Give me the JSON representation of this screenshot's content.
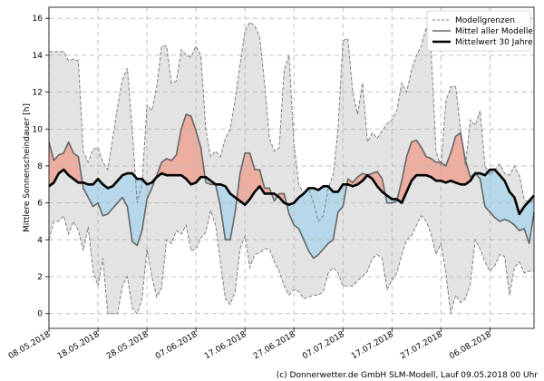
{
  "chart_data": {
    "type": "line",
    "title": "",
    "xlabel": "",
    "ylabel": "Mittlere Sonnenscheindauer [h]",
    "ylim": [
      -0.8,
      16.6
    ],
    "yticks": [
      0,
      2,
      4,
      6,
      8,
      10,
      12,
      14,
      16
    ],
    "xlim": [
      0,
      99
    ],
    "xticks": [
      {
        "day": 0,
        "label": "08.05.2018"
      },
      {
        "day": 10,
        "label": "18.05.2018"
      },
      {
        "day": 20,
        "label": "28.05.2018"
      },
      {
        "day": 30,
        "label": "07.06.2018"
      },
      {
        "day": 40,
        "label": "17.06.2018"
      },
      {
        "day": 50,
        "label": "27.06.2018"
      },
      {
        "day": 60,
        "label": "07.07.2018"
      },
      {
        "day": 70,
        "label": "17.07.2018"
      },
      {
        "day": 80,
        "label": "27.07.2018"
      },
      {
        "day": 90,
        "label": "06.08.2018"
      }
    ],
    "grid": true,
    "legend_position": "top-right",
    "legend": [
      {
        "key": "envelope",
        "label": "Modellgrenzen"
      },
      {
        "key": "model_mean",
        "label": "Mittel aller Modelle"
      },
      {
        "key": "climatology",
        "label": "Mittelwert 30 Jahre"
      }
    ],
    "x": [
      0,
      1,
      2,
      3,
      4,
      5,
      6,
      7,
      8,
      9,
      10,
      11,
      12,
      13,
      14,
      15,
      16,
      17,
      18,
      19,
      20,
      21,
      22,
      23,
      24,
      25,
      26,
      27,
      28,
      29,
      30,
      31,
      32,
      33,
      34,
      35,
      36,
      37,
      38,
      39,
      40,
      41,
      42,
      43,
      44,
      45,
      46,
      47,
      48,
      49,
      50,
      51,
      52,
      53,
      54,
      55,
      56,
      57,
      58,
      59,
      60,
      61,
      62,
      63,
      64,
      65,
      66,
      67,
      68,
      69,
      70,
      71,
      72,
      73,
      74,
      75,
      76,
      77,
      78,
      79,
      80,
      81,
      82,
      83,
      84,
      85,
      86,
      87,
      88,
      89,
      90,
      91,
      92,
      93,
      94,
      95,
      96,
      97,
      98,
      99
    ],
    "series": [
      {
        "name": "Modellgrenzen (max)",
        "key": "upper",
        "color": "#808080",
        "values": [
          14.2,
          14.2,
          14.2,
          14.2,
          13.7,
          13.8,
          13.7,
          8.8,
          8.2,
          8.9,
          9.0,
          8.2,
          7.8,
          9.5,
          11.2,
          12.7,
          13.3,
          10.0,
          6.0,
          7.0,
          11.3,
          11.0,
          12.3,
          14.5,
          14.5,
          12.5,
          12.6,
          14.3,
          14.0,
          13.9,
          14.5,
          14.0,
          10.0,
          8.5,
          8.8,
          8.5,
          9.5,
          10.0,
          11.6,
          13.5,
          15.3,
          15.8,
          15.6,
          15.0,
          12.5,
          9.5,
          8.8,
          9.0,
          13.2,
          14.0,
          9.2,
          7.0,
          6.5,
          6.8,
          6.0,
          5.0,
          5.3,
          6.8,
          7.5,
          10.0,
          14.8,
          14.9,
          12.0,
          10.8,
          12.5,
          9.3,
          9.8,
          9.5,
          9.9,
          10.3,
          10.5,
          11.0,
          12.5,
          12.0,
          13.2,
          14.0,
          14.5,
          15.5,
          14.2,
          8.8,
          8.0,
          11.5,
          12.3,
          12.3,
          10.0,
          8.0,
          10.5,
          10.2,
          11.0,
          8.0,
          7.5,
          7.8,
          8.1,
          7.6,
          7.5,
          8.0,
          7.5,
          6.2,
          6.0,
          6.2
        ]
      },
      {
        "name": "Modellgrenzen (min)",
        "key": "lower",
        "color": "#808080",
        "values": [
          4.0,
          5.0,
          5.0,
          5.3,
          4.3,
          5.0,
          4.5,
          3.4,
          4.7,
          2.3,
          1.5,
          3.0,
          0.0,
          0.0,
          0.0,
          1.5,
          2.0,
          0.3,
          0.0,
          0.8,
          3.5,
          2.0,
          0.9,
          1.4,
          4.0,
          3.8,
          4.5,
          4.3,
          4.8,
          3.4,
          3.5,
          4.1,
          4.4,
          5.6,
          4.8,
          2.8,
          0.8,
          0.5,
          1.2,
          3.5,
          4.2,
          2.5,
          3.2,
          3.3,
          3.5,
          3.5,
          2.8,
          2.3,
          1.5,
          1.0,
          1.3,
          1.2,
          0.8,
          0.9,
          1.0,
          1.0,
          1.2,
          2.2,
          2.5,
          2.2,
          1.5,
          1.5,
          1.5,
          1.8,
          2.0,
          2.3,
          3.0,
          3.2,
          3.0,
          1.3,
          1.8,
          2.2,
          3.2,
          4.0,
          4.2,
          4.8,
          5.3,
          5.0,
          4.3,
          3.2,
          3.8,
          2.2,
          0.0,
          1.0,
          0.6,
          0.8,
          1.6,
          4.0,
          3.5,
          2.8,
          2.3,
          2.6,
          3.2,
          3.1,
          1.0,
          2.5,
          2.8,
          2.2,
          2.3,
          2.3
        ]
      },
      {
        "name": "Mittel aller Modelle",
        "key": "model_mean",
        "color": "#666666",
        "values": [
          9.3,
          8.3,
          8.6,
          8.7,
          9.3,
          8.7,
          8.5,
          6.8,
          6.3,
          5.8,
          6.0,
          5.3,
          5.4,
          5.7,
          6.0,
          6.3,
          5.8,
          3.9,
          3.7,
          4.5,
          6.2,
          6.8,
          7.5,
          8.2,
          8.4,
          8.3,
          8.6,
          10.0,
          10.8,
          10.7,
          9.9,
          9.0,
          7.1,
          7.0,
          7.0,
          5.8,
          4.0,
          4.0,
          5.5,
          7.6,
          8.7,
          8.7,
          7.8,
          7.8,
          6.8,
          6.8,
          6.1,
          6.5,
          6.5,
          5.4,
          4.8,
          4.6,
          4.0,
          3.4,
          3.0,
          3.2,
          3.5,
          3.8,
          4.0,
          5.5,
          5.8,
          7.3,
          7.1,
          7.4,
          7.6,
          7.5,
          7.6,
          7.7,
          7.3,
          6.0,
          6.0,
          6.1,
          7.2,
          8.5,
          9.3,
          9.4,
          9.0,
          8.5,
          8.4,
          8.2,
          8.2,
          8.0,
          8.7,
          9.6,
          9.8,
          8.3,
          7.4,
          7.6,
          7.3,
          5.8,
          5.5,
          5.2,
          5.0,
          5.1,
          5.0,
          4.8,
          4.5,
          4.6,
          3.8,
          5.5
        ]
      },
      {
        "name": "Mittelwert 30 Jahre",
        "key": "climatology",
        "color": "#000000",
        "values": [
          6.9,
          7.1,
          7.6,
          7.8,
          7.5,
          7.3,
          7.1,
          7.1,
          7.0,
          7.0,
          7.3,
          7.0,
          6.8,
          6.9,
          7.2,
          7.5,
          7.6,
          7.6,
          7.3,
          7.3,
          7.0,
          7.1,
          7.4,
          7.6,
          7.5,
          7.5,
          7.5,
          7.5,
          7.3,
          7.0,
          7.1,
          7.4,
          7.4,
          7.2,
          7.0,
          7.0,
          6.9,
          6.5,
          6.3,
          6.1,
          5.9,
          6.2,
          6.6,
          6.9,
          6.5,
          6.5,
          6.5,
          6.3,
          6.0,
          5.9,
          6.0,
          6.3,
          6.5,
          6.8,
          6.8,
          6.7,
          6.9,
          6.9,
          6.6,
          6.6,
          7.0,
          7.0,
          6.9,
          7.0,
          7.2,
          7.5,
          7.3,
          6.9,
          6.6,
          6.4,
          6.2,
          6.2,
          6.0,
          6.6,
          7.2,
          7.5,
          7.5,
          7.5,
          7.4,
          7.2,
          7.2,
          7.1,
          7.2,
          7.1,
          7.0,
          7.0,
          7.2,
          7.6,
          7.6,
          7.5,
          7.8,
          7.8,
          7.5,
          7.2,
          6.6,
          6.3,
          5.4,
          5.8,
          6.1,
          6.4
        ]
      }
    ],
    "fill_colors": {
      "envelope": "#e3e3e3",
      "above_climatology": "#ebaea0",
      "below_climatology": "#b6d8ea"
    },
    "footer": "(c) Donnerwetter.de GmbH SLM-Modell, Lauf 09.05.2018 00 Uhr"
  }
}
